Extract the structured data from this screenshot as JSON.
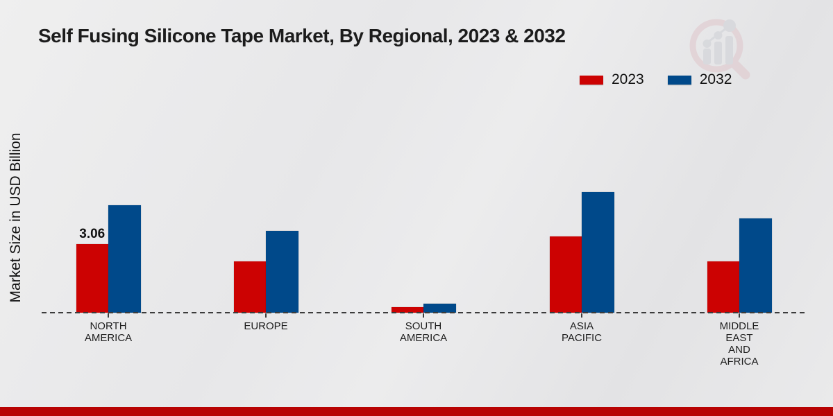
{
  "header": {
    "title": "Self Fusing Silicone Tape Market, By Regional, 2023 & 2032"
  },
  "chart_data": {
    "type": "bar",
    "title": "Self Fusing Silicone Tape Market, By Regional, 2023 & 2032",
    "xlabel": "",
    "ylabel": "Market Size in USD Billion",
    "ylim": [
      0,
      6
    ],
    "grid": false,
    "legend_position": "top-right",
    "baseline_style": "dashed",
    "categories": [
      "NORTH AMERICA",
      "EUROPE",
      "SOUTH AMERICA",
      "ASIA PACIFIC",
      "MIDDLE EAST AND AFRICA"
    ],
    "category_label_lines": [
      [
        "NORTH",
        "AMERICA"
      ],
      [
        "EUROPE"
      ],
      [
        "SOUTH",
        "AMERICA"
      ],
      [
        "ASIA",
        "PACIFIC"
      ],
      [
        "MIDDLE",
        "EAST",
        "AND",
        "AFRICA"
      ]
    ],
    "series": [
      {
        "name": "2023",
        "color": "#cc0202",
        "values": [
          3.06,
          2.3,
          0.25,
          3.4,
          2.3
        ]
      },
      {
        "name": "2032",
        "color": "#00498a",
        "values": [
          4.8,
          3.65,
          0.4,
          5.4,
          4.2
        ]
      }
    ],
    "data_labels": [
      {
        "series": "2023",
        "category": "NORTH AMERICA",
        "text": "3.06"
      }
    ]
  },
  "colors": {
    "series_2023": "#cc0202",
    "series_2032": "#00498a",
    "bottom_stripe": "#b80303",
    "background": "#e9e9ea"
  },
  "watermark": {
    "name": "market-research-magnifier-logo"
  }
}
